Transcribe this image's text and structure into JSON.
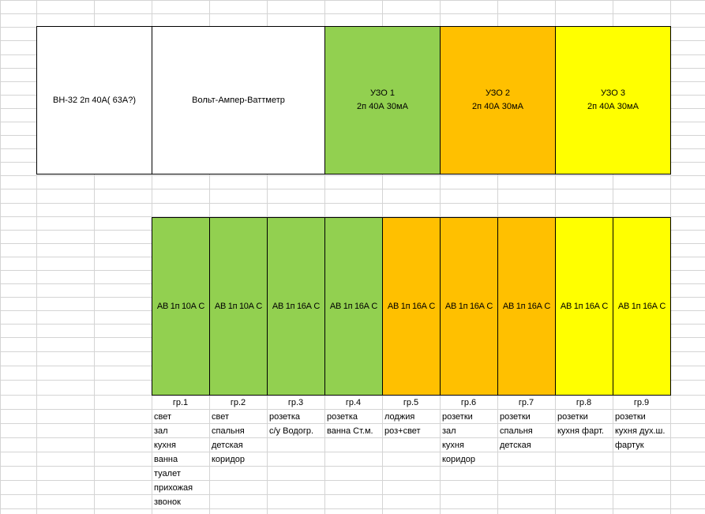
{
  "colors": {
    "green": "#92d050",
    "orange": "#ffc000",
    "yellow": "#ffff00",
    "white": "#ffffff",
    "gridline": "#d4d4d4"
  },
  "top_row": [
    {
      "lines": [
        "ВН-32 2п 40А( 63А?)"
      ],
      "color": "#ffffff"
    },
    {
      "lines": [
        "Вольт-Ампер-Ваттметр"
      ],
      "color": "#ffffff"
    },
    {
      "lines": [
        "УЗО 1",
        "2п 40А 30мА"
      ],
      "color": "#92d050"
    },
    {
      "lines": [
        "УЗО 2",
        "2п 40А 30мА"
      ],
      "color": "#ffc000"
    },
    {
      "lines": [
        "УЗО 3",
        "2п 40А 30мА"
      ],
      "color": "#ffff00"
    }
  ],
  "breakers": [
    {
      "label": "АВ 1п 10А С",
      "color": "#92d050",
      "group": "гр.1",
      "items": [
        "свет",
        "зал",
        "кухня",
        "ванна",
        "туалет",
        "прихожая",
        "звонок"
      ]
    },
    {
      "label": "АВ 1п 10А С",
      "color": "#92d050",
      "group": "гр.2",
      "items": [
        "свет",
        "спальня",
        "детская",
        "коридор"
      ]
    },
    {
      "label": "АВ 1п 16А С",
      "color": "#92d050",
      "group": "гр.3",
      "items": [
        "розетка",
        "с/у Водогр."
      ]
    },
    {
      "label": "АВ 1п 16А С",
      "color": "#92d050",
      "group": "гр.4",
      "items": [
        "розетка",
        "ванна Ст.м."
      ]
    },
    {
      "label": "АВ 1п 16А С",
      "color": "#ffc000",
      "group": "гр.5",
      "items": [
        "лоджия",
        "роз+свет"
      ]
    },
    {
      "label": "АВ 1п 16А С",
      "color": "#ffc000",
      "group": "гр.6",
      "items": [
        "розетки",
        "зал",
        "кухня",
        "коридор"
      ]
    },
    {
      "label": "АВ 1п 16А С",
      "color": "#ffc000",
      "group": "гр.7",
      "items": [
        "розетки",
        "спальня",
        "детская"
      ]
    },
    {
      "label": "АВ 1п 16А С",
      "color": "#ffff00",
      "group": "гр.8",
      "items": [
        "розетки",
        "кухня фарт."
      ]
    },
    {
      "label": "АВ 1п 16А С",
      "color": "#ffff00",
      "group": "гр.9",
      "items": [
        "розетки",
        "кухня дух.ш.",
        "фартук"
      ]
    }
  ]
}
